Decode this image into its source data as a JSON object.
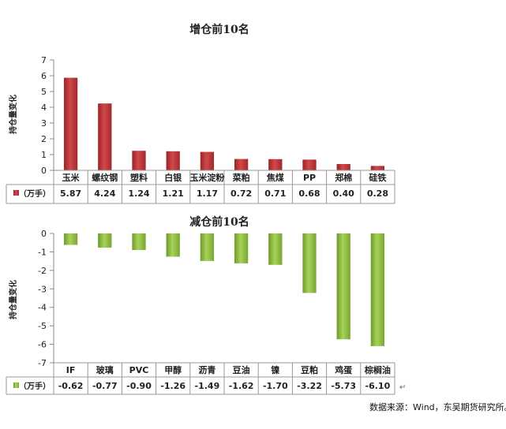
{
  "chart_data": [
    {
      "type": "bar",
      "title": "增仓前10名",
      "ylabel": "持仓量变化",
      "ylim": [
        0,
        7
      ],
      "yticks": [
        0,
        1,
        2,
        3,
        4,
        5,
        6,
        7
      ],
      "grid": false,
      "categories": [
        "玉米",
        "螺纹钢",
        "塑料",
        "白银",
        "玉米淀粉",
        "菜粕",
        "焦煤",
        "PP",
        "郑棉",
        "硅铁"
      ],
      "series": [
        {
          "name": "（万手）",
          "values": [
            5.87,
            4.24,
            1.24,
            1.21,
            1.17,
            0.72,
            0.71,
            0.68,
            0.4,
            0.28
          ],
          "labels": [
            "5.87",
            "4.24",
            "1.24",
            "1.21",
            "1.17",
            "0.72",
            "0.71",
            "0.68",
            "0.40",
            "0.28"
          ]
        }
      ],
      "color": "#c0393b"
    },
    {
      "type": "bar",
      "title": "减仓前10名",
      "ylabel": "持仓量变化",
      "ylim": [
        -7,
        0
      ],
      "yticks": [
        0,
        -1,
        -2,
        -3,
        -4,
        -5,
        -6,
        -7
      ],
      "grid": false,
      "categories": [
        "IF",
        "玻璃",
        "PVC",
        "甲醇",
        "沥青",
        "豆油",
        "镍",
        "豆粕",
        "鸡蛋",
        "棕榈油"
      ],
      "series": [
        {
          "name": "（万手）",
          "values": [
            -0.62,
            -0.77,
            -0.9,
            -1.26,
            -1.49,
            -1.62,
            -1.7,
            -3.22,
            -5.73,
            -6.1
          ],
          "labels": [
            "-0.62",
            "-0.77",
            "-0.90",
            "-1.26",
            "-1.49",
            "-1.62",
            "-1.70",
            "-3.22",
            "-5.73",
            "-6.10"
          ]
        }
      ],
      "color": "#8dbd3c"
    }
  ],
  "source_note": "数据来源：Wind，东吴期货研究所。",
  "return_mark": "↵"
}
